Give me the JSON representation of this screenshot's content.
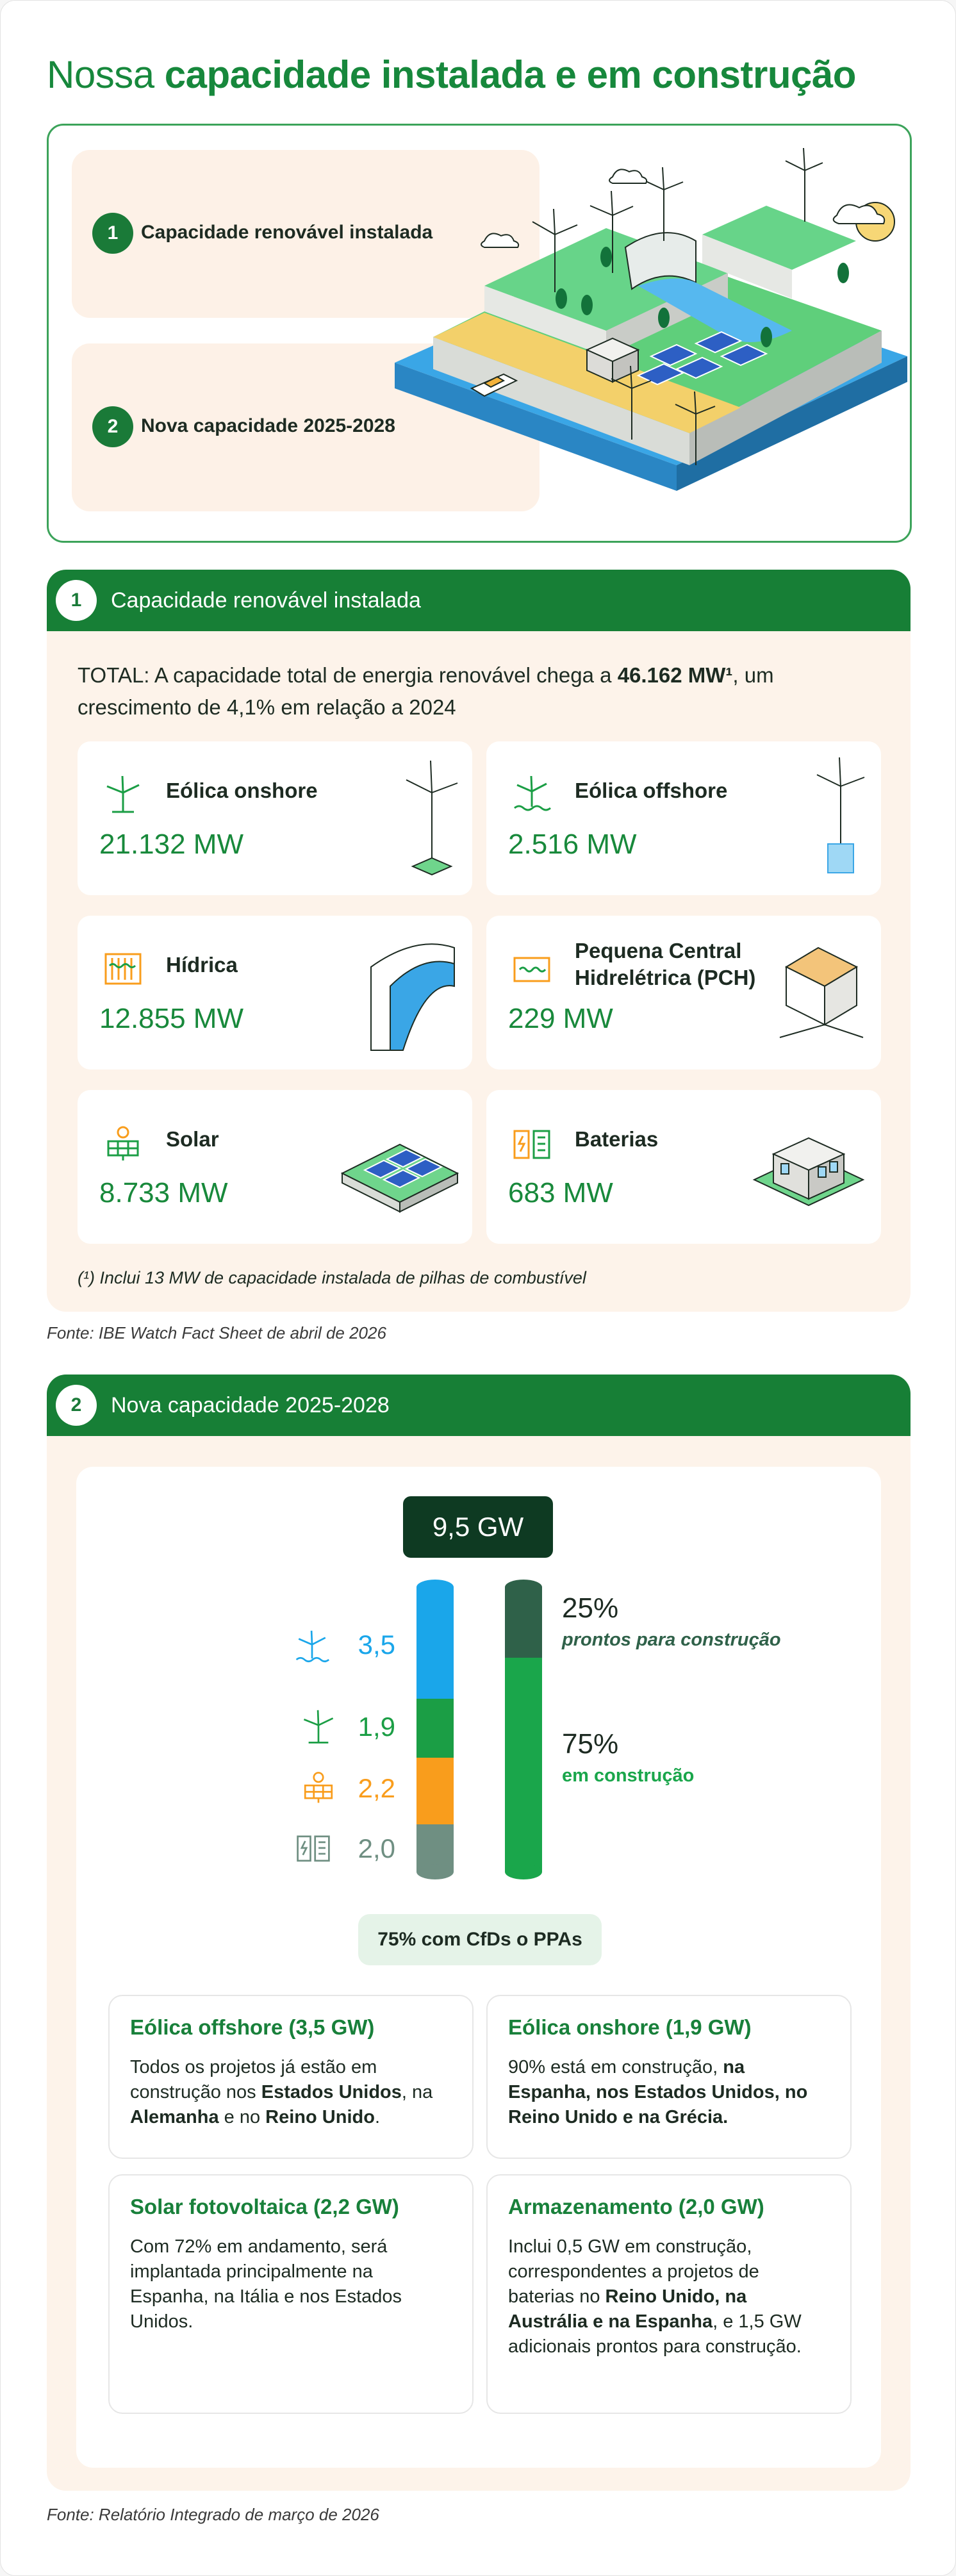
{
  "page_title": {
    "regular": "Nossa",
    "bold": "capacidade instalada e em construção"
  },
  "hero": {
    "items": [
      {
        "num": "1",
        "label": "Capacidade renovável instalada"
      },
      {
        "num": "2",
        "label": "Nova capacidade 2025-2028"
      }
    ]
  },
  "section1": {
    "num": "1",
    "title": "Capacidade renovável instalada",
    "total_prefix": "TOTAL:  A capacidade total de energia renovável chega a",
    "total_value": "46.162 MW¹",
    "total_suffix": ", um crescimento de 4,1% em relação a 2024",
    "cards": [
      {
        "label": "Eólica onshore",
        "value": "21.132 MW",
        "icon": "wind-turbine-icon"
      },
      {
        "label": "Eólica offshore",
        "value": "2.516 MW",
        "icon": "offshore-wind-icon"
      },
      {
        "label": "Hídrica",
        "value": "12.855 MW",
        "icon": "hydro-dam-icon"
      },
      {
        "label": "Pequena Central Hidrelétrica (PCH)",
        "value": "229 MW",
        "icon": "small-hydro-icon"
      },
      {
        "label": "Solar",
        "value": "8.733 MW",
        "icon": "solar-panel-icon"
      },
      {
        "label": "Baterias",
        "value": "683 MW",
        "icon": "battery-icon"
      }
    ],
    "footnote": "(¹) Inclui 13 MW de capacidade instalada de pilhas de combustível",
    "source": "Fonte: IBE Watch Fact Sheet de abril de 2026"
  },
  "section2": {
    "num": "2",
    "title": "Nova capacidade 2025-2028",
    "total_pill": "9,5 GW",
    "bar_segments": [
      {
        "value": "3,5",
        "icon": "offshore-wind-icon",
        "color": "#1aa6ea"
      },
      {
        "value": "1,9",
        "icon": "wind-turbine-icon",
        "color": "#1b9e45"
      },
      {
        "value": "2,2",
        "icon": "solar-panel-icon",
        "color": "#f99d1c"
      },
      {
        "value": "2,0",
        "icon": "battery-icon",
        "color": "#6f8f82"
      }
    ],
    "status": [
      {
        "pct": "25%",
        "label": "prontos para construção",
        "color": "#2f6149"
      },
      {
        "pct": "75%",
        "label": "em construção",
        "color": "#1aa64b"
      }
    ],
    "cfd_label": "75% com CfDs o PPAs",
    "details": [
      {
        "title": "Eólica offshore (3,5 GW)",
        "text": [
          "Todos os projetos já estão em construção nos ",
          "Estados Unidos",
          ", na ",
          "Alemanha",
          " e no ",
          "Reino Unido",
          "."
        ]
      },
      {
        "title": "Eólica onshore (1,9 GW)",
        "text": [
          "90% está em construção, ",
          "na Espanha, nos Estados Unidos, no Reino Unido e na Grécia."
        ]
      },
      {
        "title": "Solar fotovoltaica (2,2 GW)",
        "text": [
          "Com 72% em andamento, será implantada principalmente na Espanha, na Itália e nos Estados Unidos."
        ]
      },
      {
        "title": "Armazenamento (2,0 GW)",
        "text": [
          "Inclui 0,5 GW em construção, correspondentes a projetos de baterias no ",
          "Reino Unido, na Austrália e na Espanha",
          ", e 1,5 GW adicionais prontos para construção."
        ]
      }
    ],
    "source": "Fonte: Relatório Integrado de março de 2026"
  }
}
